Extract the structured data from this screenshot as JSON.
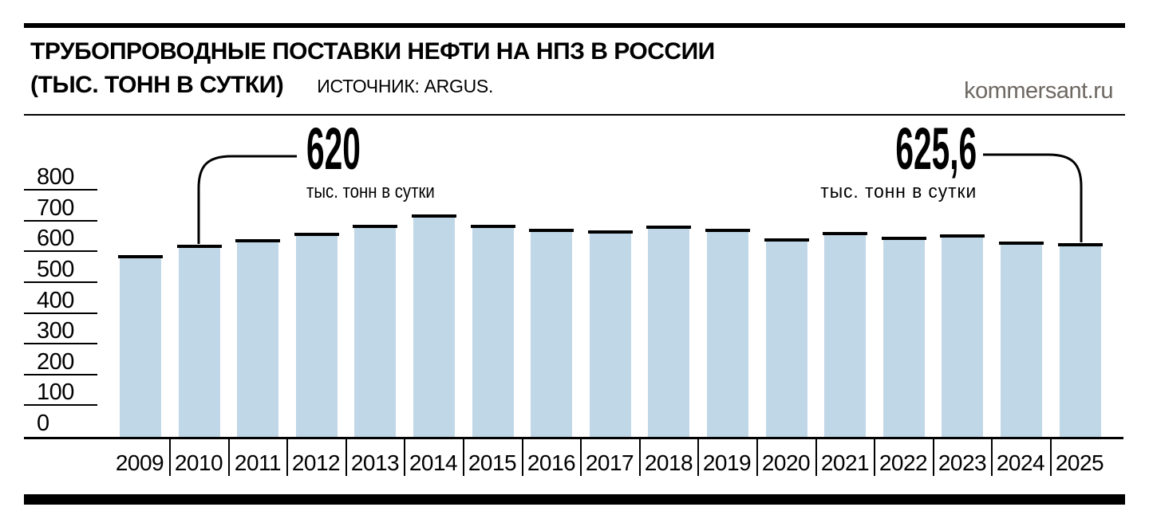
{
  "header": {
    "title_line1": "ТРУБОПРОВОДНЫЕ ПОСТАВКИ НЕФТИ НА НПЗ В РОССИИ",
    "title_line2": "(ТЫС. ТОНН В СУТКИ)",
    "source": "ИСТОЧНИК: ARGUS.",
    "brand": "kommersant.ru"
  },
  "chart_data": {
    "type": "bar",
    "title": "Трубопроводные поставки нефти на НПЗ в России",
    "ylabel": "тыс. тонн в сутки",
    "ylim": [
      0,
      800
    ],
    "y_ticks": [
      800,
      700,
      600,
      500,
      400,
      300,
      200,
      100,
      0
    ],
    "grid": "left-axis-tick-lines-only",
    "legend_position": "none",
    "bar_color": "#c0d7e8",
    "bar_cap_color": "#000000",
    "categories": [
      2009,
      2010,
      2011,
      2012,
      2013,
      2014,
      2015,
      2016,
      2017,
      2018,
      2019,
      2020,
      2021,
      2022,
      2023,
      2024,
      2025
    ],
    "values": [
      585,
      620,
      637,
      658,
      684,
      717,
      683,
      671,
      667,
      682,
      672,
      640,
      660,
      645,
      653,
      630,
      625.6
    ],
    "annotations": {
      "left": {
        "year": 2010,
        "value_label": "620",
        "unit": "тыс. тонн в сутки"
      },
      "right": {
        "year": 2025,
        "value_label": "625,6",
        "unit": "тыс. тонн в сутки"
      }
    }
  }
}
